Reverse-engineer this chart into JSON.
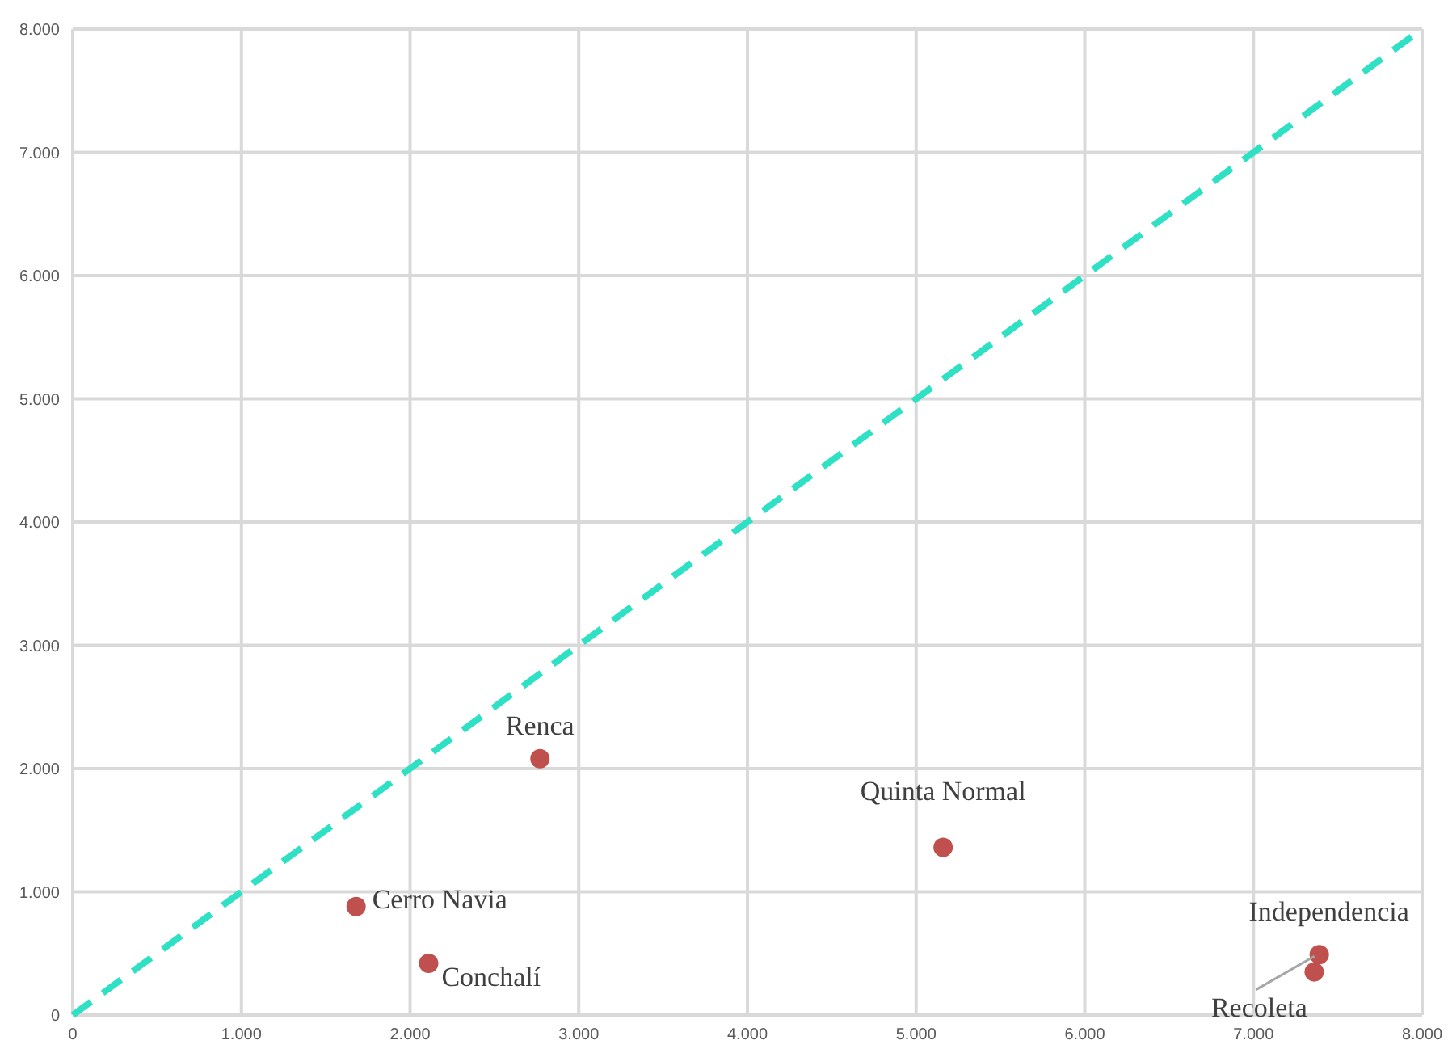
{
  "chart_data": {
    "type": "scatter",
    "xlim": [
      0,
      8000
    ],
    "ylim": [
      0,
      8000
    ],
    "xticks": [
      {
        "value": 0,
        "label": "0"
      },
      {
        "value": 1000,
        "label": "1.000"
      },
      {
        "value": 2000,
        "label": "2.000"
      },
      {
        "value": 3000,
        "label": "3.000"
      },
      {
        "value": 4000,
        "label": "4.000"
      },
      {
        "value": 5000,
        "label": "5.000"
      },
      {
        "value": 6000,
        "label": "6.000"
      },
      {
        "value": 7000,
        "label": "7.000"
      },
      {
        "value": 8000,
        "label": "8.000"
      }
    ],
    "yticks": [
      {
        "value": 0,
        "label": "0"
      },
      {
        "value": 1000,
        "label": "1.000"
      },
      {
        "value": 2000,
        "label": "2.000"
      },
      {
        "value": 3000,
        "label": "3.000"
      },
      {
        "value": 4000,
        "label": "4.000"
      },
      {
        "value": 5000,
        "label": "5.000"
      },
      {
        "value": 6000,
        "label": "6.000"
      },
      {
        "value": 7000,
        "label": "7.000"
      },
      {
        "value": 8000,
        "label": "8.000"
      }
    ],
    "grid": true,
    "marker": "circle",
    "series": [
      {
        "color": "#c0504d",
        "x": [
          2770,
          1680,
          2110,
          5160,
          7390,
          7360
        ],
        "values": [
          2080,
          880,
          420,
          1360,
          490,
          350
        ]
      },
      {
        "type": "line",
        "color": "#2ee0c4",
        "line_style": "dashed",
        "marker": "none",
        "x": [
          0,
          8000
        ],
        "values": [
          0,
          8000
        ]
      }
    ],
    "annotations": [
      {
        "text": "Renca",
        "x": 2770,
        "y": 2080
      },
      {
        "text": "Cerro Navia",
        "x": 1680,
        "y": 880
      },
      {
        "text": "Conchalí",
        "x": 2110,
        "y": 420
      },
      {
        "text": "Quinta Normal",
        "x": 5160,
        "y": 1360
      },
      {
        "text": "Independencia",
        "x": 7390,
        "y": 490
      },
      {
        "text": "Recoleta",
        "x": 7360,
        "y": 350
      }
    ]
  }
}
